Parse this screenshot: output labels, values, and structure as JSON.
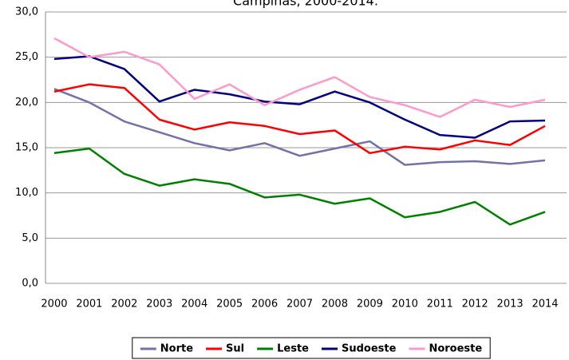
{
  "chart_data": {
    "type": "line",
    "title": "Campinas, 2000-2014.",
    "categories": [
      "2000",
      "2001",
      "2002",
      "2003",
      "2004",
      "2005",
      "2006",
      "2007",
      "2008",
      "2009",
      "2010",
      "2011",
      "2012",
      "2013",
      "2014"
    ],
    "series": [
      {
        "name": "Norte",
        "color": "#7272a8",
        "values": [
          21.5,
          20.0,
          17.9,
          16.7,
          15.5,
          14.7,
          15.5,
          14.1,
          14.9,
          15.7,
          13.1,
          13.4,
          13.5,
          13.2,
          13.6
        ]
      },
      {
        "name": "Sul",
        "color": "#ff0000",
        "values": [
          21.2,
          22.0,
          21.6,
          18.1,
          17.0,
          17.8,
          17.4,
          16.5,
          16.9,
          14.4,
          15.1,
          14.8,
          15.8,
          15.3,
          17.4
        ]
      },
      {
        "name": "Leste",
        "color": "#008000",
        "values": [
          14.4,
          14.9,
          12.1,
          10.8,
          11.5,
          11.0,
          9.5,
          9.8,
          8.8,
          9.4,
          7.3,
          7.9,
          9.0,
          6.5,
          7.9
        ]
      },
      {
        "name": "Sudoeste",
        "color": "#000080",
        "values": [
          24.8,
          25.1,
          23.7,
          20.1,
          21.4,
          20.9,
          20.1,
          19.8,
          21.2,
          20.0,
          18.1,
          16.4,
          16.1,
          17.9,
          18.0
        ]
      },
      {
        "name": "Noroeste",
        "color": "#ff99cc",
        "values": [
          27.1,
          25.0,
          25.6,
          24.2,
          20.4,
          22.0,
          19.7,
          21.4,
          22.8,
          20.6,
          19.7,
          18.4,
          20.3,
          19.5,
          20.3
        ]
      }
    ],
    "ylim": [
      0,
      30
    ],
    "yticks": [
      {
        "value": 0,
        "label": "0,0"
      },
      {
        "value": 5,
        "label": "5,0"
      },
      {
        "value": 10,
        "label": "10,0"
      },
      {
        "value": 15,
        "label": "15,0"
      },
      {
        "value": 20,
        "label": "20,0"
      },
      {
        "value": 25,
        "label": "25,0"
      },
      {
        "value": 30,
        "label": "30,0"
      }
    ],
    "grid": true,
    "legend": "bottom"
  }
}
